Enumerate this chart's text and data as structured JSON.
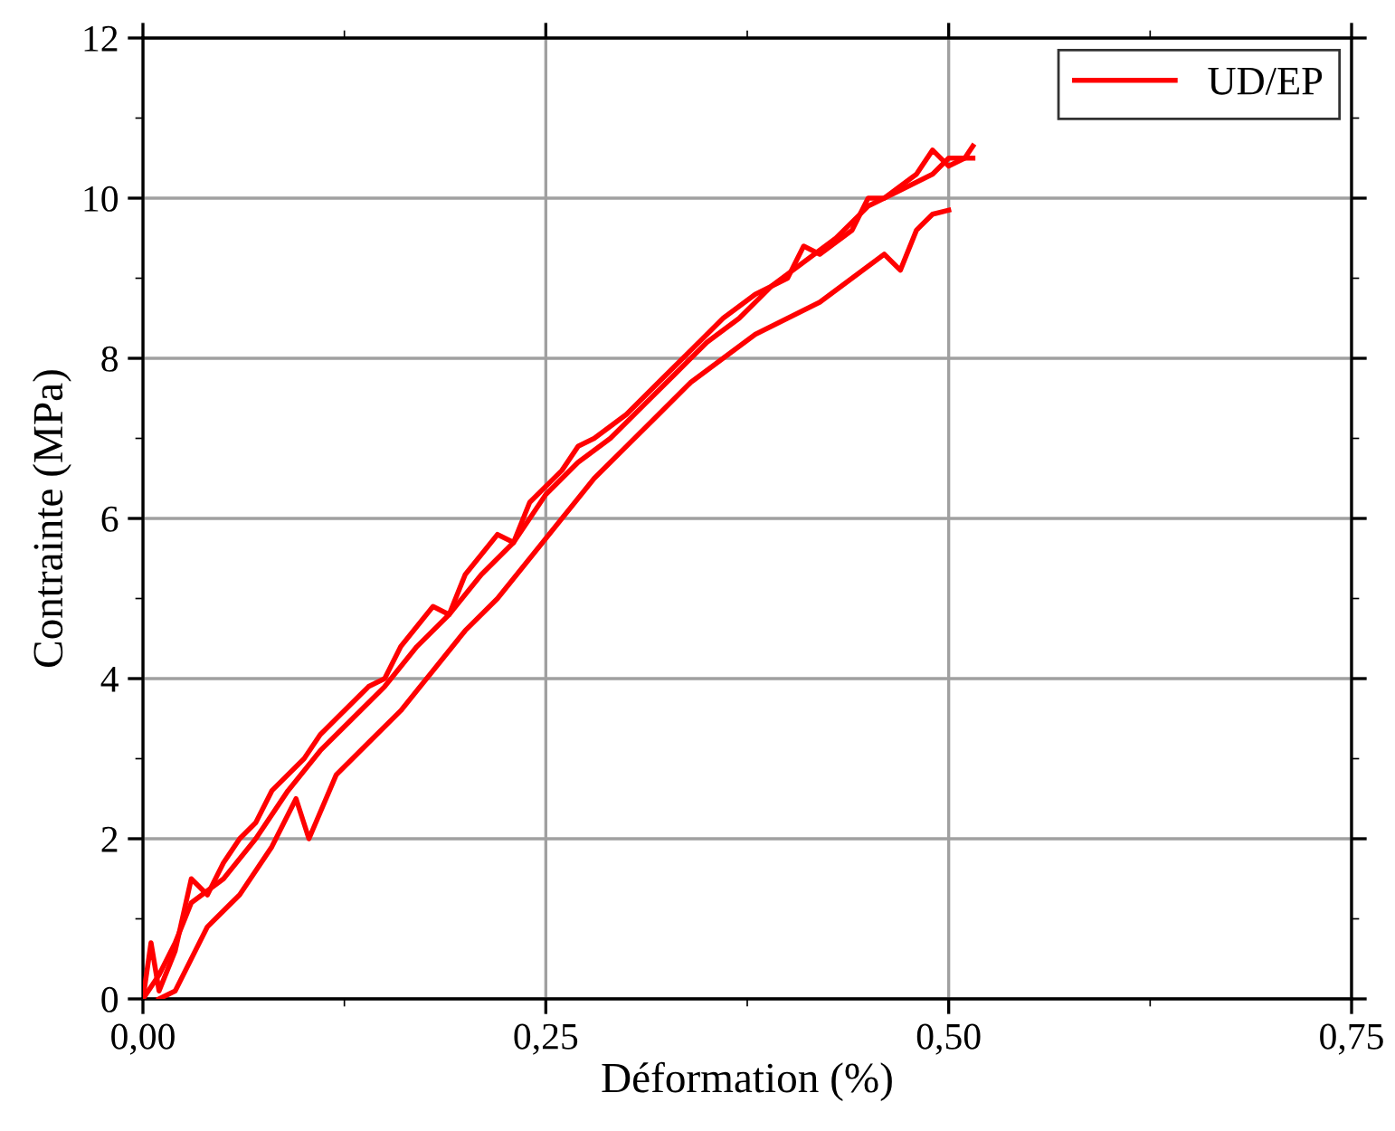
{
  "chart_data": {
    "type": "line",
    "xlabel": "Déformation (%)",
    "ylabel": "Contrainte (MPa)",
    "xlim": [
      0,
      0.75
    ],
    "ylim": [
      0,
      12
    ],
    "xticks": [
      {
        "value": 0,
        "label": "0,00"
      },
      {
        "value": 0.25,
        "label": "0,25"
      },
      {
        "value": 0.5,
        "label": "0,50"
      },
      {
        "value": 0.75,
        "label": "0,75"
      }
    ],
    "yticks": [
      0,
      2,
      4,
      6,
      8,
      10,
      12
    ],
    "grid": true,
    "legend": "top right",
    "marker": "none",
    "line_style": "solid",
    "series": [
      {
        "name": "UD/EP",
        "color": "#ff0000",
        "x": [
          0,
          0.005,
          0.01,
          0.02,
          0.03,
          0.04,
          0.05,
          0.06,
          0.07,
          0.08,
          0.1,
          0.11,
          0.12,
          0.14,
          0.15,
          0.16,
          0.18,
          0.19,
          0.2,
          0.22,
          0.23,
          0.24,
          0.26,
          0.27,
          0.28,
          0.3,
          0.32,
          0.34,
          0.35,
          0.36,
          0.38,
          0.4,
          0.41,
          0.42,
          0.44,
          0.45,
          0.46,
          0.48,
          0.49,
          0.5,
          0.51,
          0.515
        ],
        "values": [
          0,
          0.7,
          0.1,
          0.6,
          1.5,
          1.3,
          1.7,
          2.0,
          2.2,
          2.6,
          3.0,
          3.3,
          3.5,
          3.9,
          4.0,
          4.4,
          4.9,
          4.8,
          5.3,
          5.8,
          5.7,
          6.2,
          6.6,
          6.9,
          7.0,
          7.3,
          7.7,
          8.1,
          8.3,
          8.5,
          8.8,
          9.0,
          9.4,
          9.3,
          9.6,
          10.0,
          10.0,
          10.3,
          10.6,
          10.4,
          10.5,
          10.65
        ]
      },
      {
        "color": "#ff0000",
        "x": [
          0,
          0.01,
          0.02,
          0.03,
          0.05,
          0.07,
          0.09,
          0.11,
          0.13,
          0.15,
          0.17,
          0.19,
          0.21,
          0.23,
          0.25,
          0.27,
          0.29,
          0.31,
          0.33,
          0.35,
          0.37,
          0.39,
          0.41,
          0.43,
          0.45,
          0.47,
          0.49,
          0.5,
          0.515
        ],
        "values": [
          0,
          0.3,
          0.7,
          1.2,
          1.5,
          2.0,
          2.6,
          3.1,
          3.5,
          3.9,
          4.4,
          4.8,
          5.3,
          5.7,
          6.3,
          6.7,
          7.0,
          7.4,
          7.8,
          8.2,
          8.5,
          8.9,
          9.2,
          9.5,
          9.9,
          10.1,
          10.3,
          10.5,
          10.5
        ]
      },
      {
        "color": "#ff0000",
        "x": [
          0.01,
          0.02,
          0.03,
          0.04,
          0.06,
          0.08,
          0.095,
          0.103,
          0.12,
          0.14,
          0.16,
          0.18,
          0.2,
          0.22,
          0.24,
          0.26,
          0.28,
          0.3,
          0.32,
          0.34,
          0.36,
          0.38,
          0.4,
          0.42,
          0.44,
          0.46,
          0.47,
          0.48,
          0.49,
          0.5
        ],
        "values": [
          0,
          0.1,
          0.5,
          0.9,
          1.3,
          1.9,
          2.5,
          2.0,
          2.8,
          3.2,
          3.6,
          4.1,
          4.6,
          5.0,
          5.5,
          6.0,
          6.5,
          6.9,
          7.3,
          7.7,
          8.0,
          8.3,
          8.5,
          8.7,
          9.0,
          9.3,
          9.1,
          9.6,
          9.8,
          9.85
        ]
      }
    ]
  }
}
